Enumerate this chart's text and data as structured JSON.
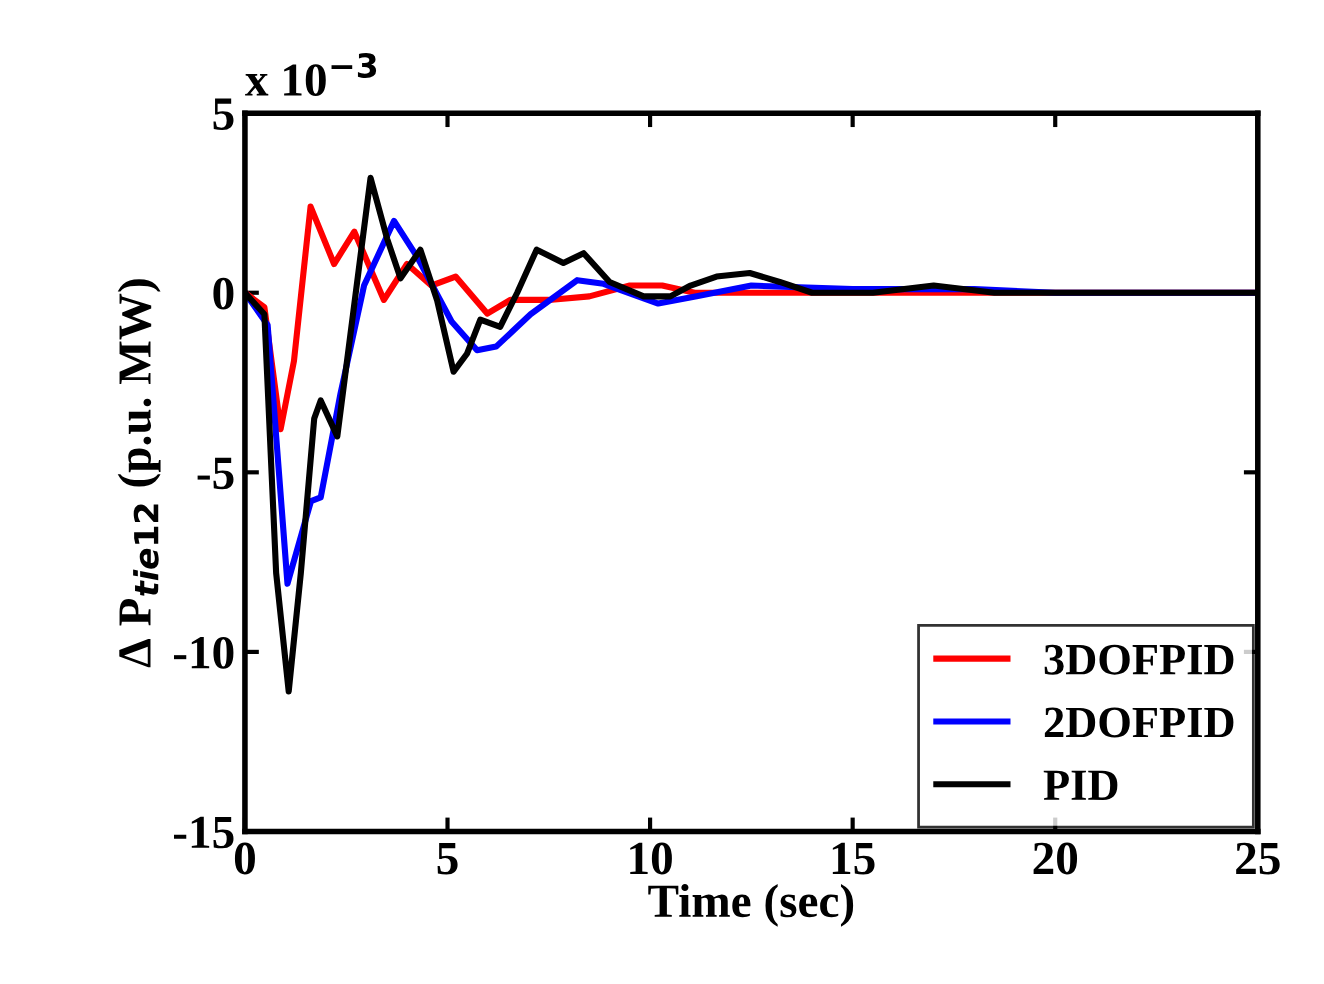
{
  "chart_data": {
    "type": "line",
    "xlabel": "Time (sec)",
    "ylabel": "Δ P$_{tie12}$ (p.u. MW)",
    "annotations": [
      "x 10$^{−3}$"
    ],
    "xlim": [
      0,
      25
    ],
    "xticks": [
      0,
      5,
      10,
      15,
      20,
      25
    ],
    "ylim": [
      -15,
      5
    ],
    "yticks": [
      -15,
      -10,
      -5,
      0,
      5
    ],
    "grid": false,
    "legend": "bottom right",
    "marker": "none",
    "line_style": "solid",
    "series": [
      {
        "name": "3DOFPID",
        "color": "#ff0000",
        "x": [
          0,
          0.48,
          0.88,
          1.21,
          1.62,
          2.2,
          2.7,
          3.43,
          4.0,
          4.6,
          5.2,
          5.98,
          6.55,
          7.5,
          8.5,
          9.5,
          10.3,
          11.1,
          12.5,
          15,
          20,
          25
        ],
        "values": [
          0,
          -0.4,
          -3.8,
          -1.9,
          2.4,
          0.8,
          1.7,
          -0.2,
          0.8,
          0.2,
          0.45,
          -0.58,
          -0.2,
          -0.2,
          -0.1,
          0.2,
          0.2,
          0,
          0,
          0,
          0,
          0
        ]
      },
      {
        "name": "2DOFPID",
        "color": "#0000ff",
        "x": [
          0,
          0.56,
          1.05,
          1.63,
          1.87,
          2.36,
          2.94,
          3.68,
          4.25,
          5.1,
          5.73,
          6.2,
          7.05,
          8.2,
          8.85,
          10.2,
          11.15,
          12.5,
          15,
          18,
          20,
          25
        ],
        "values": [
          0,
          -0.9,
          -8.1,
          -5.8,
          -5.7,
          -2.8,
          0.2,
          2.0,
          1.0,
          -0.8,
          -1.6,
          -1.5,
          -0.6,
          0.35,
          0.25,
          -0.3,
          -0.1,
          0.2,
          0.1,
          0.1,
          0,
          0
        ]
      },
      {
        "name": "PID",
        "color": "#000000",
        "x": [
          0,
          0.48,
          0.77,
          1.08,
          1.38,
          1.71,
          1.87,
          2.28,
          2.69,
          3.1,
          3.51,
          3.84,
          4.33,
          4.74,
          5.15,
          5.48,
          5.81,
          6.3,
          6.72,
          7.2,
          7.86,
          8.36,
          9.0,
          9.84,
          10.5,
          11.0,
          11.64,
          12.46,
          13.2,
          14,
          15.5,
          17,
          18.5,
          20,
          25
        ],
        "values": [
          0,
          -0.6,
          -7.8,
          -11.1,
          -7.8,
          -3.5,
          -3.0,
          -4.0,
          -0.4,
          3.2,
          1.5,
          0.4,
          1.2,
          -0.2,
          -2.2,
          -1.7,
          -0.75,
          -0.95,
          0,
          1.2,
          0.83,
          1.1,
          0.3,
          -0.1,
          -0.1,
          0.2,
          0.45,
          0.55,
          0.3,
          0,
          0,
          0.2,
          0,
          0,
          0
        ]
      }
    ]
  }
}
